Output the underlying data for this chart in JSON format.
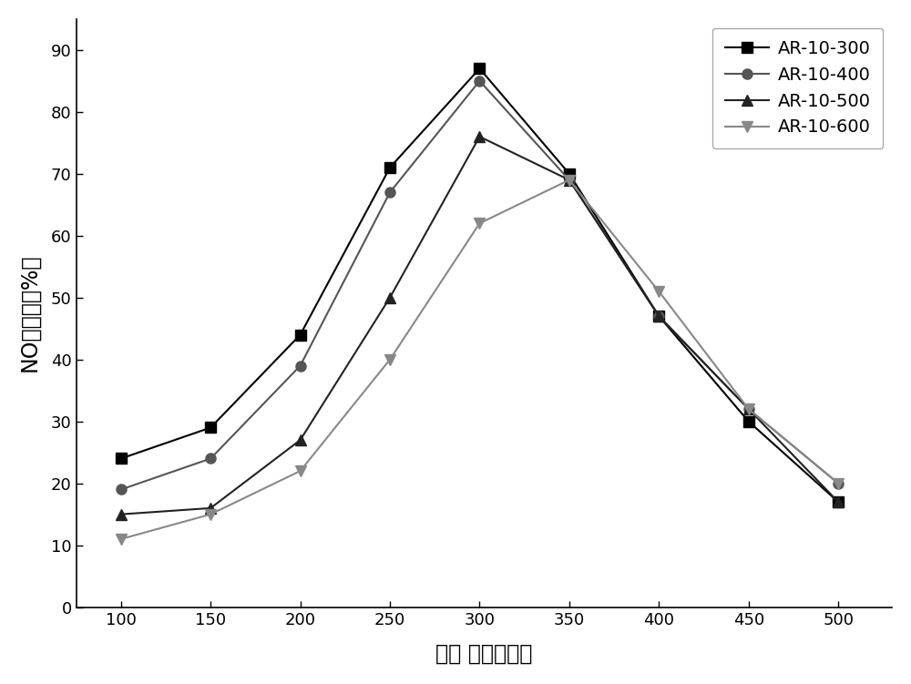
{
  "x": [
    100,
    150,
    200,
    250,
    300,
    350,
    400,
    450,
    500
  ],
  "series": {
    "AR-10-300": [
      24,
      29,
      44,
      71,
      87,
      70,
      47,
      30,
      17
    ],
    "AR-10-400": [
      19,
      24,
      39,
      67,
      85,
      69,
      47,
      32,
      20
    ],
    "AR-10-500": [
      15,
      16,
      27,
      50,
      76,
      69,
      47,
      32,
      17
    ],
    "AR-10-600": [
      11,
      15,
      22,
      40,
      62,
      69,
      51,
      32,
      20
    ]
  },
  "colors": {
    "AR-10-300": "#000000",
    "AR-10-400": "#555555",
    "AR-10-500": "#222222",
    "AR-10-600": "#888888"
  },
  "markers": {
    "AR-10-300": "s",
    "AR-10-400": "o",
    "AR-10-500": "^",
    "AR-10-600": "v"
  },
  "xlabel": "温度 （摄氏度）",
  "ylabel": "NO转换率（%）",
  "xlim": [
    75,
    530
  ],
  "ylim": [
    0,
    95
  ],
  "xticks": [
    100,
    150,
    200,
    250,
    300,
    350,
    400,
    450,
    500
  ],
  "yticks": [
    0,
    10,
    20,
    30,
    40,
    50,
    60,
    70,
    80,
    90
  ],
  "linewidth": 1.5,
  "markersize": 8,
  "legend_fontsize": 14,
  "axis_label_fontsize": 17,
  "tick_fontsize": 13,
  "background_color": "#ffffff"
}
